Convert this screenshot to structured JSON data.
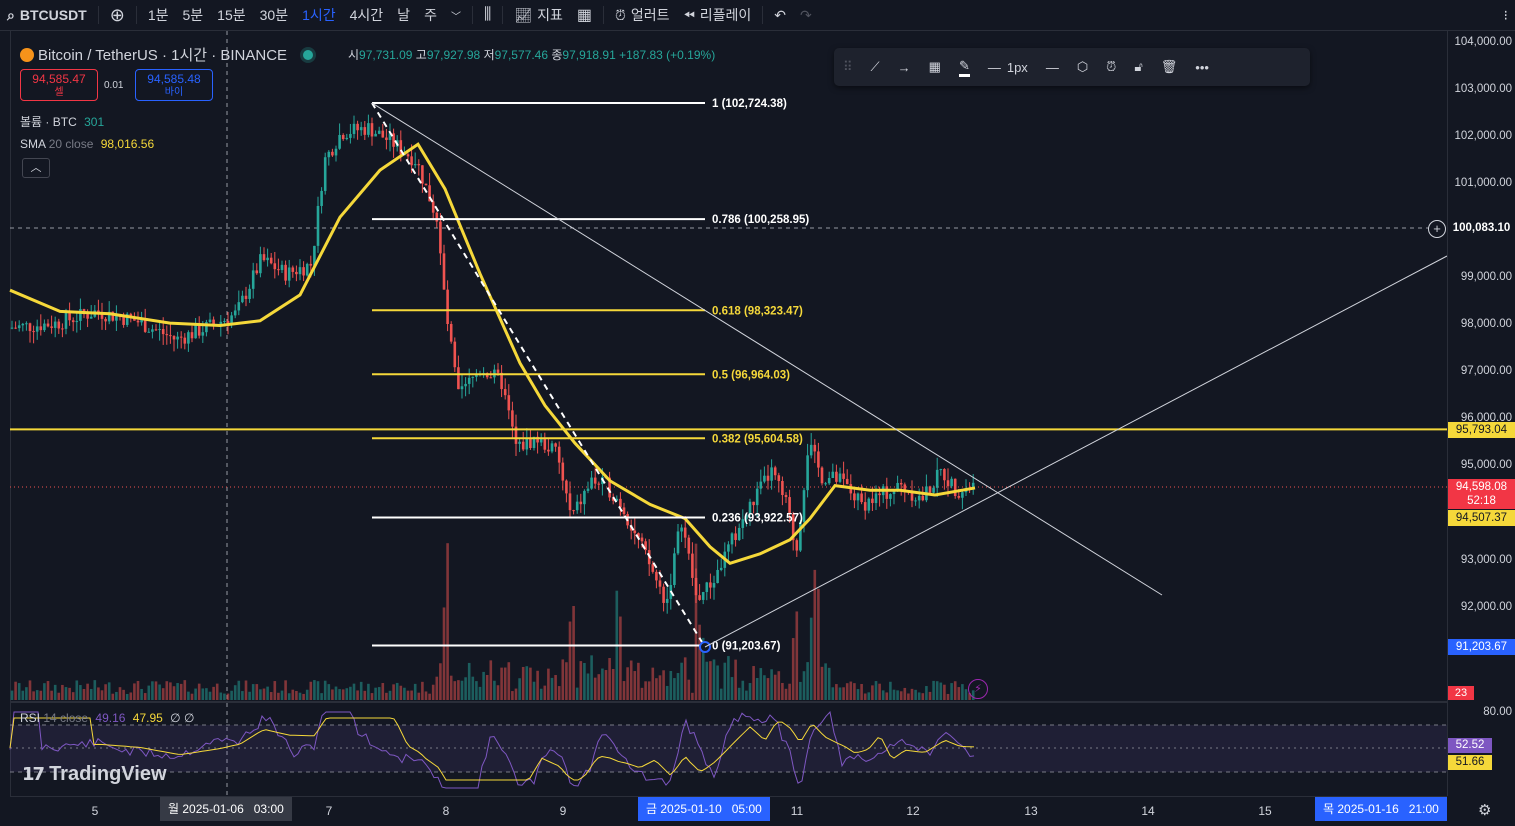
{
  "toolbar": {
    "symbol": "BTCUSDT",
    "intervals": [
      "1분",
      "5분",
      "15분",
      "30분",
      "1시간",
      "4시간",
      "날",
      "주"
    ],
    "active_interval": "1시간",
    "indicators_label": "지표",
    "alert_label": "얼러트",
    "replay_label": "리플레이"
  },
  "legend": {
    "title": "Bitcoin / TetherUS · 1시간 · BINANCE",
    "open_label": "시",
    "open": "97,731.09",
    "high_label": "고",
    "high": "97,927.98",
    "low_label": "저",
    "low": "97,577.46",
    "close_label": "종",
    "close": "97,918.91",
    "change": "+187.83 (+0.19%)"
  },
  "order": {
    "sell_price": "94,585.47",
    "sell_label": "셀",
    "spread": "0.01",
    "buy_price": "94,585.48",
    "buy_label": "바이"
  },
  "indicators": {
    "volume_label": "볼륨 · BTC",
    "volume_value": "301",
    "sma_label": "SMA",
    "sma_params": "20 close",
    "sma_value": "98,016.56",
    "rsi_label": "RSI",
    "rsi_params": "14 close",
    "rsi_value1": "49.16",
    "rsi_value2": "47.95",
    "rsi_extra": "∅ ∅"
  },
  "drawing_toolbar": {
    "width_label": "1px"
  },
  "fib_levels": [
    {
      "label": "1 (102,724.38)",
      "price": 102724.38,
      "color": "#ffffff"
    },
    {
      "label": "0.786 (100,258.95)",
      "price": 100258.95,
      "color": "#ffffff"
    },
    {
      "label": "0.618 (98,323.47)",
      "price": 98323.47,
      "color": "#f5d83a"
    },
    {
      "label": "0.5 (96,964.03)",
      "price": 96964.03,
      "color": "#f5d83a"
    },
    {
      "label": "0.382 (95,604.58)",
      "price": 95604.58,
      "color": "#f5d83a"
    },
    {
      "label": "0.236 (93,922.57)",
      "price": 93922.57,
      "color": "#ffffff"
    },
    {
      "label": "0 (91,203.67)",
      "price": 91203.67,
      "color": "#ffffff"
    }
  ],
  "price_axis": {
    "ticks": [
      "104,000.00",
      "103,000.00",
      "102,000.00",
      "101,000.00",
      "99,000.00",
      "98,000.00",
      "97,000.00",
      "96,000.00",
      "95,000.00",
      "93,000.00",
      "92,000.00"
    ],
    "crosshair": "100,083.10",
    "hline": "95,793.04",
    "last_price": "94,598.08",
    "countdown": "52:18",
    "sma_tag": "94,507.37",
    "fib_zero_tag": "91,203.67",
    "volume_tag": "23"
  },
  "rsi_axis": {
    "top": "80.00",
    "tag1": "52.52",
    "tag2": "51.66"
  },
  "time_axis": {
    "labels": [
      "5",
      "7",
      "8",
      "9",
      "11",
      "12",
      "13",
      "14",
      "15"
    ],
    "crosshair_tag": "월 2025-01-06   03:00",
    "selected_tag": "금 2025-01-10   05:00",
    "end_tag": "목 2025-01-16   21:00"
  },
  "brand": "TradingView",
  "colors": {
    "up": "#26a69a",
    "down": "#ef5350",
    "sma": "#f5d83a",
    "accent": "#2962ff"
  }
}
